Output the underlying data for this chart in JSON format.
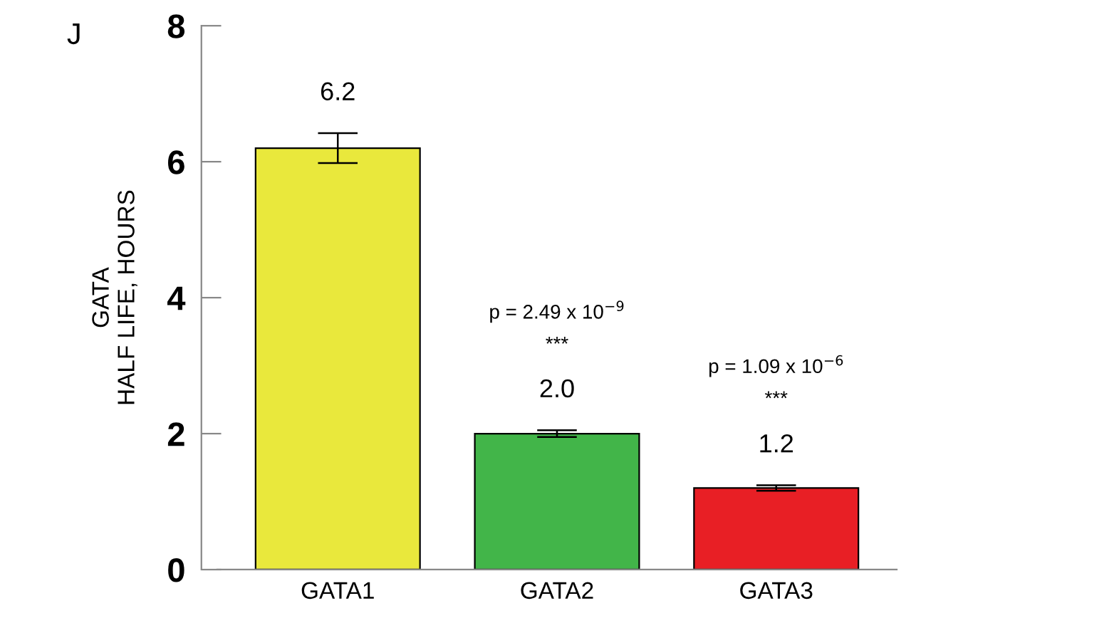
{
  "chart_data": {
    "type": "bar",
    "ylabel": "GATA\nHALF LIFE, HOURS",
    "categories": [
      "GATA1",
      "GATA2",
      "GATA3"
    ],
    "values": [
      6.2,
      2.0,
      1.2
    ],
    "colors": [
      "#e9e83c",
      "#42b549",
      "#e81f25"
    ],
    "errors": [
      0.22,
      0.05,
      0.04
    ],
    "value_labels": [
      "6.2",
      "2.0",
      "1.2"
    ],
    "ylim": [
      0,
      8
    ],
    "yticks": [
      0,
      2,
      4,
      6,
      8
    ],
    "grid": false,
    "legend": false,
    "annotations": [
      "J",
      "p = 2.49 x 10$^{−9}$",
      "***",
      "p = 1.09 x 10$^{−6}$",
      "***"
    ]
  }
}
